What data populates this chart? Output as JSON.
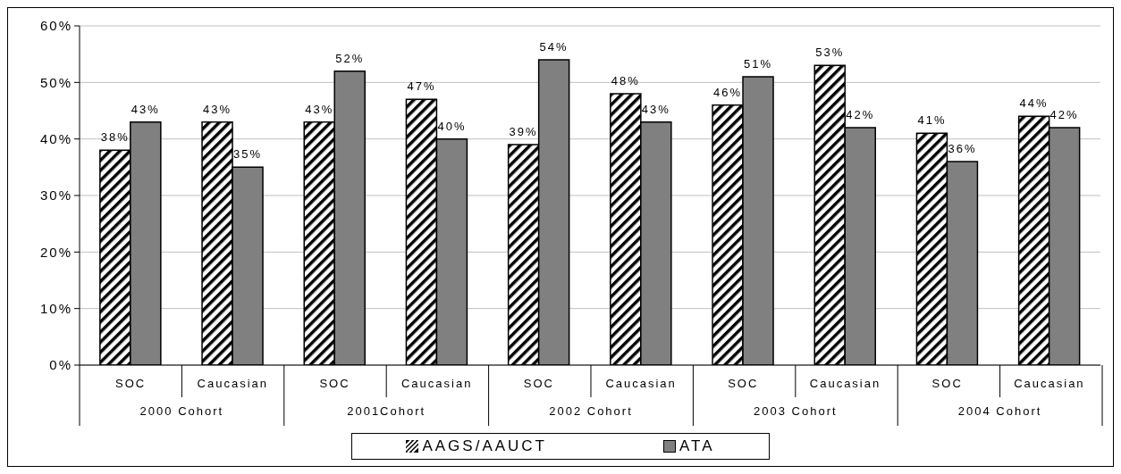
{
  "chart_data": {
    "type": "bar",
    "categories": [
      "SOC",
      "Caucasian",
      "SOC",
      "Caucasian",
      "SOC",
      "Caucasian",
      "SOC",
      "Caucasian",
      "SOC",
      "Caucasian"
    ],
    "series": [
      {
        "name": "AAGS/AAUCT",
        "color": "#000000",
        "values": [
          38,
          43,
          43,
          47,
          39,
          48,
          46,
          53,
          41,
          44
        ],
        "value_labels": [
          "38%",
          "43%",
          "43%",
          "47%",
          "39%",
          "48%",
          "46%",
          "53%",
          "41%",
          "44%"
        ]
      },
      {
        "name": "ATA",
        "color": "#808080",
        "values": [
          43,
          35,
          52,
          40,
          54,
          43,
          51,
          42,
          36,
          42
        ],
        "value_labels": [
          "43%",
          "35%",
          "52%",
          "40%",
          "54%",
          "43%",
          "51%",
          "42%",
          "36%",
          "42%"
        ]
      }
    ],
    "ylim": [
      0,
      60
    ],
    "yticks": [
      {
        "value": 0,
        "label": "0%"
      },
      {
        "value": 10,
        "label": "10%"
      },
      {
        "value": 20,
        "label": "20%"
      },
      {
        "value": 30,
        "label": "30%"
      },
      {
        "value": 40,
        "label": "40%"
      },
      {
        "value": 50,
        "label": "50%"
      },
      {
        "value": 60,
        "label": "60%"
      }
    ],
    "grid": "y",
    "legend": "bottom",
    "annotations": [
      "2000 Cohort",
      "2001Cohort",
      "2002 Cohort",
      "2003 Cohort",
      "2004 Cohort"
    ]
  }
}
